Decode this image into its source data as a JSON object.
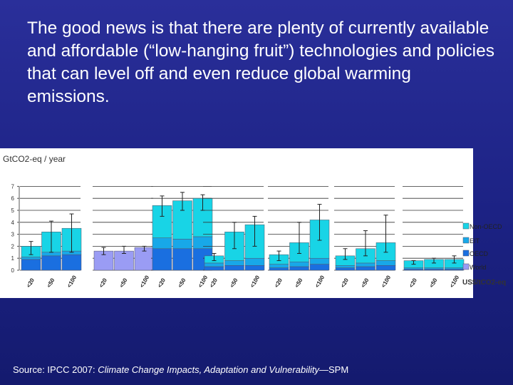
{
  "slide": {
    "title": "The good news is that there are plenty of currently available and affordable (“low-hanging fruit”) technologies and policies that can level off and even reduce global warming emissions.",
    "source_prefix": "Source: IPCC 2007: ",
    "source_title": "Climate Change Impacts, Adaptation and Vulnerability",
    "source_suffix": "—SPM"
  },
  "chart_data": {
    "type": "bar",
    "stacked": true,
    "title": "",
    "ylabel": "GtCO2-eq / year",
    "xlabel": "US$/tCO2-eq",
    "ylim": [
      0,
      7
    ],
    "yticks": [
      0,
      1,
      2,
      3,
      4,
      5,
      6,
      7
    ],
    "categories": [
      "<20",
      "<50",
      "<100"
    ],
    "legend": [
      "Non-OECD",
      "EIT",
      "OECD",
      "World"
    ],
    "colors": {
      "Non-OECD": "#18d4e6",
      "EIT": "#18a8e8",
      "OECD": "#1a6fe0",
      "World": "#9a9cf4"
    },
    "groups": [
      {
        "bars": [
          {
            "OECD": 0.9,
            "EIT": 0.2,
            "Non-OECD": 0.9,
            "err": [
              1.3,
              2.4
            ]
          },
          {
            "OECD": 1.2,
            "EIT": 0.3,
            "Non-OECD": 1.7,
            "err": [
              1.5,
              4.1
            ]
          },
          {
            "OECD": 1.3,
            "EIT": 0.3,
            "Non-OECD": 1.9,
            "err": [
              1.5,
              4.7
            ]
          }
        ]
      },
      {
        "bars": [
          {
            "World": 1.6,
            "err": [
              1.3,
              1.9
            ]
          },
          {
            "World": 1.6,
            "err": [
              1.4,
              2.0
            ]
          },
          {
            "World": 1.9,
            "err": [
              1.6,
              2.0
            ]
          }
        ]
      },
      {
        "bars": [
          {
            "OECD": 1.8,
            "EIT": 0.9,
            "Non-OECD": 2.7,
            "err": [
              4.5,
              6.2
            ]
          },
          {
            "OECD": 1.8,
            "EIT": 0.8,
            "Non-OECD": 3.2,
            "err": [
              5.0,
              6.5
            ]
          },
          {
            "OECD": 1.8,
            "EIT": 1.0,
            "Non-OECD": 3.2,
            "err": [
              5.0,
              6.3
            ]
          }
        ]
      },
      {
        "bars": [
          {
            "OECD": 0.3,
            "EIT": 0.3,
            "Non-OECD": 0.6,
            "err": [
              0.8,
              1.4
            ]
          },
          {
            "OECD": 0.4,
            "EIT": 0.4,
            "Non-OECD": 2.4,
            "err": [
              1.8,
              4.0
            ]
          },
          {
            "OECD": 0.4,
            "EIT": 0.6,
            "Non-OECD": 2.8,
            "err": [
              2.0,
              4.5
            ]
          }
        ]
      },
      {
        "bars": [
          {
            "OECD": 0.2,
            "EIT": 0.3,
            "Non-OECD": 0.8,
            "err": [
              0.8,
              1.6
            ]
          },
          {
            "OECD": 0.3,
            "EIT": 0.4,
            "Non-OECD": 1.6,
            "err": [
              1.4,
              4.0
            ]
          },
          {
            "OECD": 0.5,
            "EIT": 0.5,
            "Non-OECD": 3.2,
            "err": [
              2.5,
              5.5
            ]
          }
        ]
      },
      {
        "bars": [
          {
            "OECD": 0.2,
            "EIT": 0.2,
            "Non-OECD": 0.8,
            "err": [
              0.9,
              1.8
            ]
          },
          {
            "OECD": 0.3,
            "EIT": 0.3,
            "Non-OECD": 1.2,
            "err": [
              1.2,
              3.3
            ]
          },
          {
            "OECD": 0.4,
            "EIT": 0.4,
            "Non-OECD": 1.5,
            "err": [
              1.5,
              4.6
            ]
          }
        ]
      },
      {
        "bars": [
          {
            "OECD": 0.1,
            "EIT": 0.1,
            "Non-OECD": 0.6,
            "err": [
              0.5,
              0.8
            ]
          },
          {
            "OECD": 0.1,
            "EIT": 0.1,
            "Non-OECD": 0.7,
            "err": [
              0.6,
              1.0
            ]
          },
          {
            "OECD": 0.1,
            "EIT": 0.1,
            "Non-OECD": 0.7,
            "err": [
              0.6,
              1.2
            ]
          }
        ]
      }
    ]
  }
}
